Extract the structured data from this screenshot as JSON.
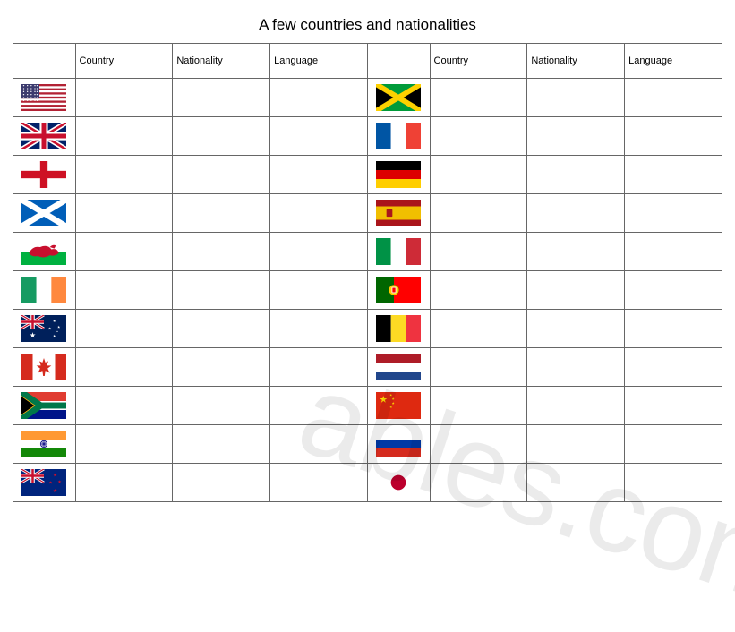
{
  "title": "A few countries and nationalities",
  "headers": {
    "country": "Country",
    "nationality": "Nationality",
    "language": "Language"
  },
  "watermark_text": "ables.com",
  "rows": [
    {
      "left_flag": "usa",
      "right_flag": "jamaica"
    },
    {
      "left_flag": "uk",
      "right_flag": "france"
    },
    {
      "left_flag": "england",
      "right_flag": "germany"
    },
    {
      "left_flag": "scotland",
      "right_flag": "spain"
    },
    {
      "left_flag": "wales",
      "right_flag": "italy"
    },
    {
      "left_flag": "ireland",
      "right_flag": "portugal"
    },
    {
      "left_flag": "australia",
      "right_flag": "belgium"
    },
    {
      "left_flag": "canada",
      "right_flag": "netherlands"
    },
    {
      "left_flag": "south_africa",
      "right_flag": "china"
    },
    {
      "left_flag": "india",
      "right_flag": "russia"
    },
    {
      "left_flag": "new_zealand",
      "right_flag": "japan"
    }
  ],
  "flag_colors": {
    "usa_blue": "#3c3b6e",
    "usa_red": "#b22234",
    "uk_blue": "#012169",
    "uk_red": "#c8102e",
    "england_red": "#ce1124",
    "scotland_blue": "#005eb8",
    "wales_green": "#00b140",
    "wales_red": "#c8102e",
    "ireland_green": "#169b62",
    "ireland_orange": "#ff883e",
    "aus_blue": "#00205b",
    "canada_red": "#d52b1e",
    "sa_green": "#007749",
    "sa_black": "#000000",
    "sa_gold": "#ffb612",
    "sa_red": "#e03c31",
    "sa_blue": "#001489",
    "india_saffron": "#ff9933",
    "india_green": "#138808",
    "india_blue": "#000080",
    "nz_blue": "#00247d",
    "jamaica_green": "#009b3a",
    "jamaica_gold": "#fed100",
    "jamaica_black": "#000000",
    "france_blue": "#0055a4",
    "france_red": "#ef4135",
    "germany_black": "#000000",
    "germany_red": "#dd0000",
    "germany_gold": "#ffce00",
    "spain_red": "#aa151b",
    "spain_yellow": "#f1bf00",
    "italy_green": "#009246",
    "italy_red": "#ce2b37",
    "portugal_green": "#006600",
    "portugal_red": "#ff0000",
    "belgium_black": "#000000",
    "belgium_yellow": "#fdda24",
    "belgium_red": "#ef3340",
    "nl_red": "#ae1c28",
    "nl_blue": "#21468b",
    "china_red": "#de2910",
    "china_yellow": "#ffde00",
    "russia_blue": "#0039a6",
    "russia_red": "#d52b1e",
    "japan_red": "#bc002d"
  }
}
